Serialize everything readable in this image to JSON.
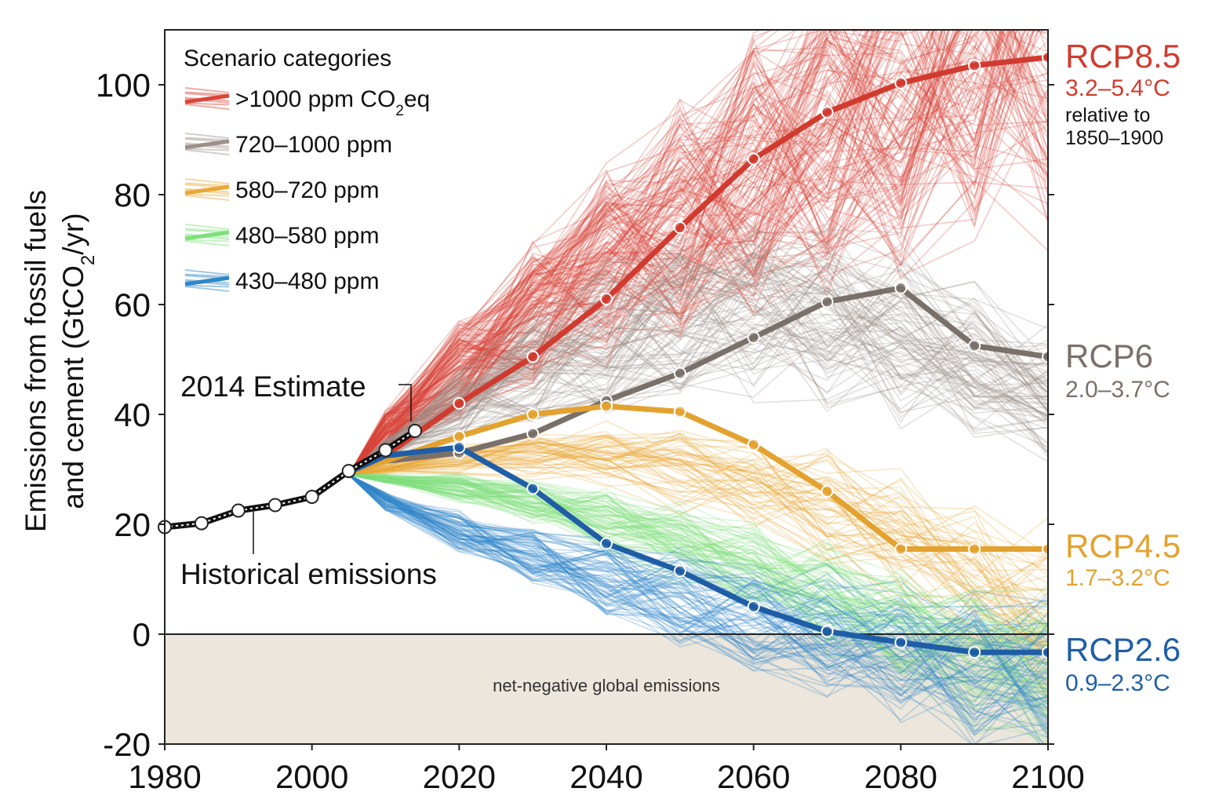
{
  "chart_data": {
    "type": "line",
    "ylabel_line1": "Emissions from fossil fuels",
    "ylabel_line2_pre": "and cement (GtCO",
    "ylabel_line2_sub": "2",
    "ylabel_line2_post": "/yr)",
    "xlim": [
      1980,
      2100
    ],
    "ylim": [
      -20,
      110
    ],
    "x_ticks": [
      "1980",
      "2000",
      "2020",
      "2040",
      "2060",
      "2080",
      "2100"
    ],
    "y_ticks": [
      "-20",
      "0",
      "20",
      "40",
      "60",
      "80",
      "100"
    ],
    "legend": {
      "title": "Scenario categories",
      "entries": [
        {
          "label_pre": ">1000 ppm CO",
          "label_sub": "2",
          "label_post": "eq",
          "color": "#d9463a"
        },
        {
          "label_pre": "720–1000 ppm",
          "label_sub": "",
          "label_post": "",
          "color": "#9c918a"
        },
        {
          "label_pre": "580–720 ppm",
          "label_sub": "",
          "label_post": "",
          "color": "#e8a93a"
        },
        {
          "label_pre": "480–580 ppm",
          "label_sub": "",
          "label_post": "",
          "color": "#7ee07a"
        },
        {
          "label_pre": "430–480 ppm",
          "label_sub": "",
          "label_post": "",
          "color": "#2f86c8"
        }
      ]
    },
    "annotations": {
      "estimate": "2014 Estimate",
      "historical": "Historical emissions",
      "negative_region": "net-negative global emissions"
    },
    "historical": {
      "x": [
        1980,
        1985,
        1990,
        1995,
        2000,
        2005,
        2010,
        2014
      ],
      "y": [
        19.5,
        20.2,
        22.5,
        23.5,
        25.0,
        29.7,
        33.5,
        37.0
      ]
    },
    "series": [
      {
        "name": "RCP8.5",
        "temp": "3.2–5.4°C",
        "note_line1": "relative to",
        "note_line2": "1850–1900",
        "color": "#d13b2f",
        "x": [
          2005,
          2010,
          2020,
          2030,
          2040,
          2050,
          2060,
          2070,
          2080,
          2090,
          2100
        ],
        "y": [
          29.5,
          32.5,
          42.0,
          50.5,
          61.0,
          74.0,
          86.5,
          95.0,
          100.3,
          103.5,
          105.0
        ]
      },
      {
        "name": "RCP6",
        "temp": "2.0–3.7°C",
        "color": "#7a706a",
        "x": [
          2005,
          2010,
          2020,
          2030,
          2040,
          2050,
          2060,
          2070,
          2080,
          2090,
          2100
        ],
        "y": [
          29.5,
          31.5,
          33.0,
          36.5,
          42.5,
          47.5,
          54.0,
          60.5,
          63.0,
          52.5,
          50.5
        ]
      },
      {
        "name": "RCP4.5",
        "temp": "1.7–3.2°C",
        "color": "#e3a22f",
        "x": [
          2005,
          2010,
          2020,
          2030,
          2040,
          2050,
          2060,
          2070,
          2080,
          2090,
          2100
        ],
        "y": [
          29.5,
          31.5,
          36.0,
          40.0,
          41.5,
          40.5,
          34.5,
          26.0,
          15.5,
          15.5,
          15.5
        ]
      },
      {
        "name": "RCP2.6",
        "temp": "0.9–2.3°C",
        "color": "#1f5ea6",
        "x": [
          2005,
          2010,
          2020,
          2030,
          2040,
          2050,
          2060,
          2070,
          2080,
          2090,
          2100
        ],
        "y": [
          29.5,
          32.5,
          34.0,
          26.5,
          16.5,
          11.5,
          5.0,
          0.5,
          -1.5,
          -3.3,
          -3.3
        ]
      }
    ],
    "grid": false
  },
  "colors": {
    "negative_fill": "#ece6dc",
    "historical_line": "#111111",
    "ensemble": [
      "#d9463a",
      "#9c918a",
      "#e8a93a",
      "#7ee07a",
      "#2f86c8"
    ]
  }
}
